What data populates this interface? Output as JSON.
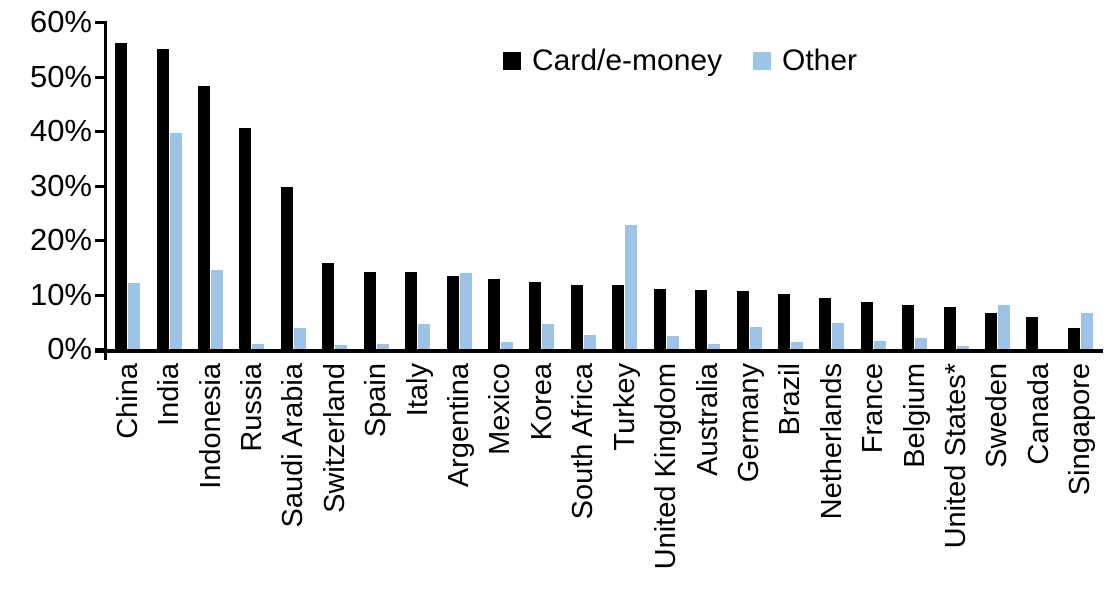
{
  "legend": [
    {
      "key": "card",
      "label": "Card/e-money",
      "color": "#000000"
    },
    {
      "key": "other",
      "label": "Other",
      "color": "#9DC3E6"
    }
  ],
  "y_axis": {
    "ticks": [
      "60%",
      "50%",
      "40%",
      "30%",
      "20%",
      "10%",
      "0%"
    ],
    "max": 60,
    "min": 0
  },
  "chart_data": {
    "type": "bar",
    "title": "",
    "xlabel": "",
    "ylabel": "",
    "ylim": [
      0,
      60
    ],
    "ytick_format": "percent",
    "grid": false,
    "legend_position": "top-center",
    "categories": [
      "China",
      "India",
      "Indonesia",
      "Russia",
      "Saudi Arabia",
      "Switzerland",
      "Spain",
      "Italy",
      "Argentina",
      "Mexico",
      "Korea",
      "South Africa",
      "Turkey",
      "United Kingdom",
      "Australia",
      "Germany",
      "Brazil",
      "Netherlands",
      "France",
      "Belgium",
      "United States*",
      "Sweden",
      "Canada",
      "Singapore"
    ],
    "series": [
      {
        "name": "Card/e-money",
        "key": "card",
        "color": "#000000",
        "values": [
          56.2,
          55.0,
          48.2,
          40.5,
          29.8,
          15.7,
          14.2,
          14.1,
          13.4,
          12.9,
          12.3,
          11.8,
          11.7,
          11.1,
          10.9,
          10.6,
          10.1,
          9.3,
          8.7,
          8.1,
          7.8,
          6.6,
          5.9,
          3.8
        ]
      },
      {
        "name": "Other",
        "key": "other",
        "color": "#9DC3E6",
        "values": [
          12.2,
          39.7,
          14.5,
          1.0,
          3.8,
          0.7,
          1.0,
          4.6,
          13.9,
          1.3,
          4.6,
          2.5,
          22.7,
          2.4,
          1.0,
          4.0,
          1.2,
          4.8,
          1.5,
          2.1,
          0.5,
          8.0,
          0,
          6.7
        ]
      }
    ]
  }
}
